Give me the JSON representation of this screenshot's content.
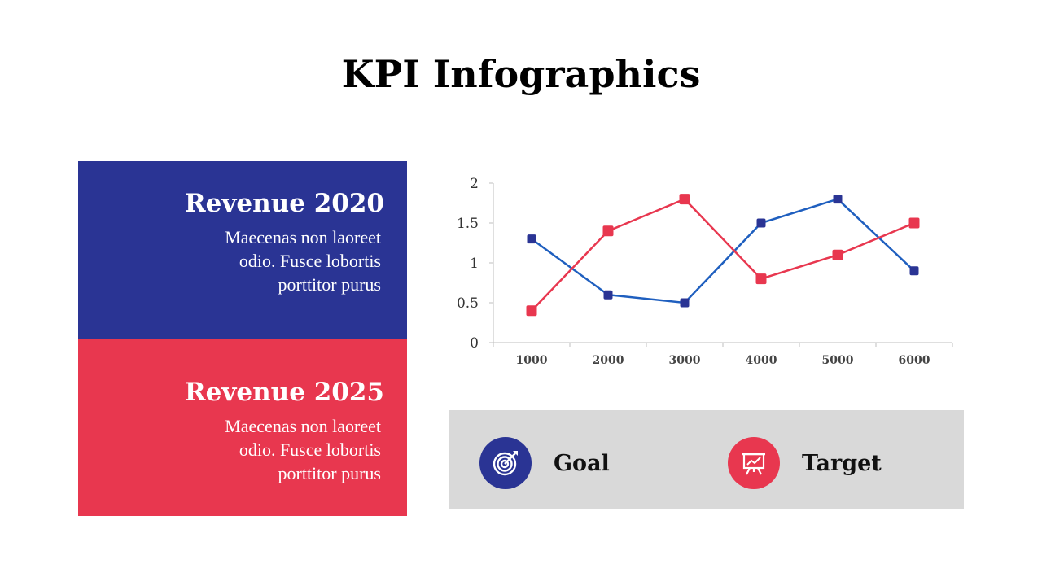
{
  "page": {
    "title": "KPI Infographics"
  },
  "panels": [
    {
      "heading": "Revenue 2020",
      "lines": [
        "Maecenas non laoreet",
        "odio. Fusce lobortis",
        "porttitor purus"
      ],
      "color": "#2a3494"
    },
    {
      "heading": "Revenue 2025",
      "lines": [
        "Maecenas non laoreet",
        "odio. Fusce lobortis",
        "porttitor purus"
      ],
      "color": "#e8374f"
    }
  ],
  "legend": {
    "goal": {
      "label": "Goal",
      "icon": "target-dart-icon",
      "color": "#2a3494"
    },
    "target": {
      "label": "Target",
      "icon": "presentation-board-icon",
      "color": "#e8374f"
    }
  },
  "chart_data": {
    "type": "line",
    "categories": [
      "1000",
      "2000",
      "3000",
      "4000",
      "5000",
      "6000"
    ],
    "series": [
      {
        "values": [
          1.3,
          0.6,
          0.5,
          1.5,
          1.8,
          0.9
        ],
        "color": "#1f5fbf",
        "marker_color": "#2a3494"
      },
      {
        "values": [
          0.4,
          1.4,
          1.8,
          0.8,
          1.1,
          1.5
        ],
        "color": "#e8374f",
        "marker_color": "#e8374f"
      }
    ],
    "ylim": [
      0,
      2
    ],
    "yticks": [
      "0",
      "0.5",
      "1",
      "1.5",
      "2"
    ],
    "grid": false
  }
}
